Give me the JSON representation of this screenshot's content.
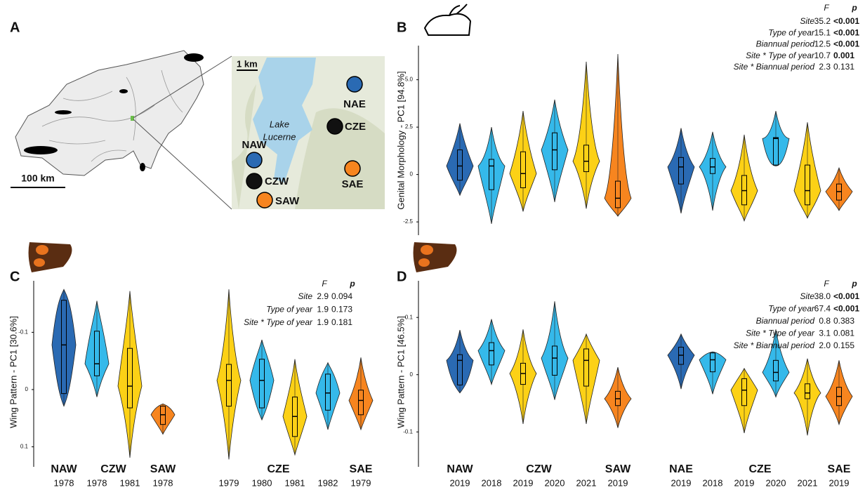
{
  "map": {
    "panel": "A",
    "scale": "100 km",
    "inset_scale": "1 km",
    "lake": [
      "Lake",
      "Lucerne"
    ],
    "sites": [
      {
        "label": "NAE",
        "color": "#2a6ab3"
      },
      {
        "label": "CZE",
        "color": "#111111"
      },
      {
        "label": "NAW",
        "color": "#2a6ab3"
      },
      {
        "label": "CZW",
        "color": "#111111"
      },
      {
        "label": "SAE",
        "color": "#f7851f"
      },
      {
        "label": "SAW",
        "color": "#f7851f"
      }
    ]
  },
  "chart_data": [
    {
      "type": "violin",
      "panel": "B",
      "ylabel": "Genital Morphology - PC1 [94.8%]",
      "ylim": [
        -3.2,
        6.8
      ],
      "yticks": [
        -2.5,
        0,
        2.5,
        {
          "value": 5,
          "label": "5.0"
        }
      ],
      "groups": [
        {
          "colors": [
            "#2a6ab3"
          ],
          "values": [
            [
              -1.1,
              -0.3,
              0.45,
              1.3,
              2.7
            ]
          ]
        },
        {
          "colors": [
            "#35b9ea",
            "#fcd116",
            "#35b9ea",
            "#fcd116"
          ],
          "values": [
            [
              -2.6,
              -0.8,
              0.45,
              0.8,
              2.5
            ],
            [
              -1.95,
              -0.7,
              0.05,
              1.2,
              3.35
            ],
            [
              -1.45,
              0.25,
              1.3,
              2.2,
              3.95
            ],
            [
              -1.8,
              0.15,
              0.7,
              1.55,
              5.95
            ]
          ]
        },
        {
          "colors": [
            "#f7851f"
          ],
          "values": [
            [
              -2.2,
              -1.75,
              -1.25,
              -0.35,
              6.35
            ]
          ]
        },
        {
          "colors": [
            "#2a6ab3"
          ],
          "values": [
            [
              -2.05,
              -0.5,
              0.4,
              0.9,
              2.45
            ]
          ]
        },
        {
          "colors": [
            "#35b9ea",
            "#fcd116",
            "#35b9ea",
            "#fcd116"
          ],
          "values": [
            [
              -1.9,
              0.05,
              0.4,
              0.85,
              2.25
            ],
            [
              -2.45,
              -1.6,
              -0.85,
              -0.05,
              2.1
            ],
            [
              0.45,
              0.5,
              1.9,
              1.95,
              3.35
            ],
            [
              -2.3,
              -1.6,
              -0.85,
              0.5,
              2.75
            ]
          ]
        },
        {
          "colors": [
            "#f7851f"
          ],
          "values": [
            [
              -1.9,
              -1.35,
              -0.9,
              -0.5,
              0.35
            ]
          ]
        }
      ],
      "table": {
        "columns": [
          "F",
          "p"
        ],
        "rows": [
          {
            "term": "Site",
            "F": "35.2",
            "p": "<0.001",
            "bold": true
          },
          {
            "term": "Type of year",
            "F": "15.1",
            "p": "<0.001",
            "bold": true
          },
          {
            "term": "Biannual period",
            "F": "12.5",
            "p": "<0.001",
            "bold": true
          },
          {
            "term": "Site * Type of year",
            "F": "10.7",
            "p": "0.001",
            "bold": true
          },
          {
            "term": "Site * Biannual period",
            "F": "2.3",
            "p": "0.131",
            "bold": false
          }
        ]
      }
    },
    {
      "type": "violin",
      "panel": "C",
      "ylabel": "Wing Pattern - PC1 [30.6%]",
      "ylim": [
        -0.19,
        0.135
      ],
      "y_inverted": true,
      "yticks": [
        -0.1,
        0,
        0.1
      ],
      "groups": [
        {
          "name": "NAW",
          "categories": [
            "1978"
          ],
          "colors": [
            "#2a6ab3"
          ],
          "values": [
            [
              -0.175,
              -0.156,
              -0.078,
              0.007,
              0.029
            ]
          ]
        },
        {
          "name": "CZW",
          "categories": [
            "1978",
            "1981"
          ],
          "colors": [
            "#35b9ea",
            "#fcd116"
          ],
          "values": [
            [
              -0.155,
              -0.102,
              -0.045,
              -0.024,
              0.013
            ],
            [
              -0.172,
              -0.072,
              -0.006,
              0.032,
              0.119
            ]
          ]
        },
        {
          "name": "SAW",
          "categories": [
            "1978"
          ],
          "colors": [
            "#f7851f"
          ],
          "values": [
            [
              0.025,
              0.029,
              0.044,
              0.061,
              0.078
            ]
          ]
        },
        {
          "name": "CZE",
          "categories": [
            "1979",
            "1980",
            "1981",
            "1982"
          ],
          "colors": [
            "#fcd116",
            "#35b9ea",
            "#fcd116",
            "#35b9ea"
          ],
          "values": [
            [
              -0.175,
              -0.044,
              -0.016,
              0.029,
              0.122
            ],
            [
              -0.087,
              -0.053,
              -0.016,
              0.032,
              0.053
            ],
            [
              -0.053,
              0.013,
              0.047,
              0.082,
              0.114
            ],
            [
              -0.047,
              -0.027,
              0.006,
              0.036,
              0.07
            ]
          ]
        },
        {
          "name": "SAE",
          "categories": [
            "1979"
          ],
          "colors": [
            "#f7851f"
          ],
          "values": [
            [
              -0.056,
              0.001,
              0.019,
              0.044,
              0.07
            ]
          ]
        }
      ],
      "table": {
        "columns": [
          "F",
          "p"
        ],
        "rows": [
          {
            "term": "Site",
            "F": "2.9",
            "p": "0.094",
            "bold": false
          },
          {
            "term": "Type of year",
            "F": "1.9",
            "p": "0.173",
            "bold": false
          },
          {
            "term": "Site * Type of year",
            "F": "1.9",
            "p": "0.181",
            "bold": false
          }
        ]
      }
    },
    {
      "type": "violin",
      "panel": "D",
      "ylabel": "Wing Pattern - PC1 [46.5%]",
      "ylim": [
        -0.161,
        0.164
      ],
      "yticks": [
        -0.1,
        0,
        0.1
      ],
      "groups": [
        {
          "name": "NAW",
          "categories": [
            "2019"
          ],
          "colors": [
            "#2a6ab3"
          ],
          "values": [
            [
              -0.032,
              -0.018,
              0.025,
              0.035,
              0.078
            ]
          ]
        },
        {
          "name": "CZW",
          "categories": [
            "2018",
            "2019",
            "2020",
            "2021"
          ],
          "colors": [
            "#35b9ea",
            "#fcd116",
            "#35b9ea",
            "#fcd116"
          ],
          "values": [
            [
              -0.017,
              0.017,
              0.042,
              0.056,
              0.097
            ],
            [
              -0.086,
              -0.017,
              0.002,
              0.02,
              0.079
            ],
            [
              -0.044,
              -0.001,
              0.029,
              0.05,
              0.128
            ],
            [
              -0.086,
              -0.02,
              0.025,
              0.045,
              0.071
            ]
          ]
        },
        {
          "name": "SAW",
          "categories": [
            "2019"
          ],
          "colors": [
            "#f7851f"
          ],
          "values": [
            [
              -0.093,
              -0.054,
              -0.042,
              -0.029,
              0.013
            ]
          ]
        },
        {
          "name": "NAE",
          "categories": [
            "2019"
          ],
          "colors": [
            "#2a6ab3"
          ],
          "values": [
            [
              -0.025,
              0.018,
              0.034,
              0.048,
              0.071
            ]
          ]
        },
        {
          "name": "CZE",
          "categories": [
            "2018",
            "2019",
            "2020",
            "2021"
          ],
          "colors": [
            "#35b9ea",
            "#fcd116",
            "#35b9ea",
            "#fcd116"
          ],
          "values": [
            [
              -0.034,
              0.005,
              0.026,
              0.038,
              0.04
            ],
            [
              -0.102,
              -0.054,
              -0.027,
              -0.007,
              0.011
            ],
            [
              -0.039,
              -0.011,
              0.004,
              0.025,
              0.079
            ],
            [
              -0.106,
              -0.042,
              -0.032,
              -0.016,
              0.028
            ]
          ]
        },
        {
          "name": "SAE",
          "categories": [
            "2019"
          ],
          "colors": [
            "#f7851f"
          ],
          "values": [
            [
              -0.087,
              -0.054,
              -0.038,
              -0.022,
              0.025
            ]
          ]
        }
      ],
      "table": {
        "columns": [
          "F",
          "p"
        ],
        "rows": [
          {
            "term": "Site",
            "F": "38.0",
            "p": "<0.001",
            "bold": true
          },
          {
            "term": "Type of year",
            "F": "67.4",
            "p": "<0.001",
            "bold": true
          },
          {
            "term": "Biannual period",
            "F": "0.8",
            "p": "0.383",
            "bold": false
          },
          {
            "term": "Site * Type of year",
            "F": "3.1",
            "p": "0.081",
            "bold": false
          },
          {
            "term": "Site * Biannual period",
            "F": "2.0",
            "p": "0.155",
            "bold": false
          }
        ]
      }
    }
  ]
}
